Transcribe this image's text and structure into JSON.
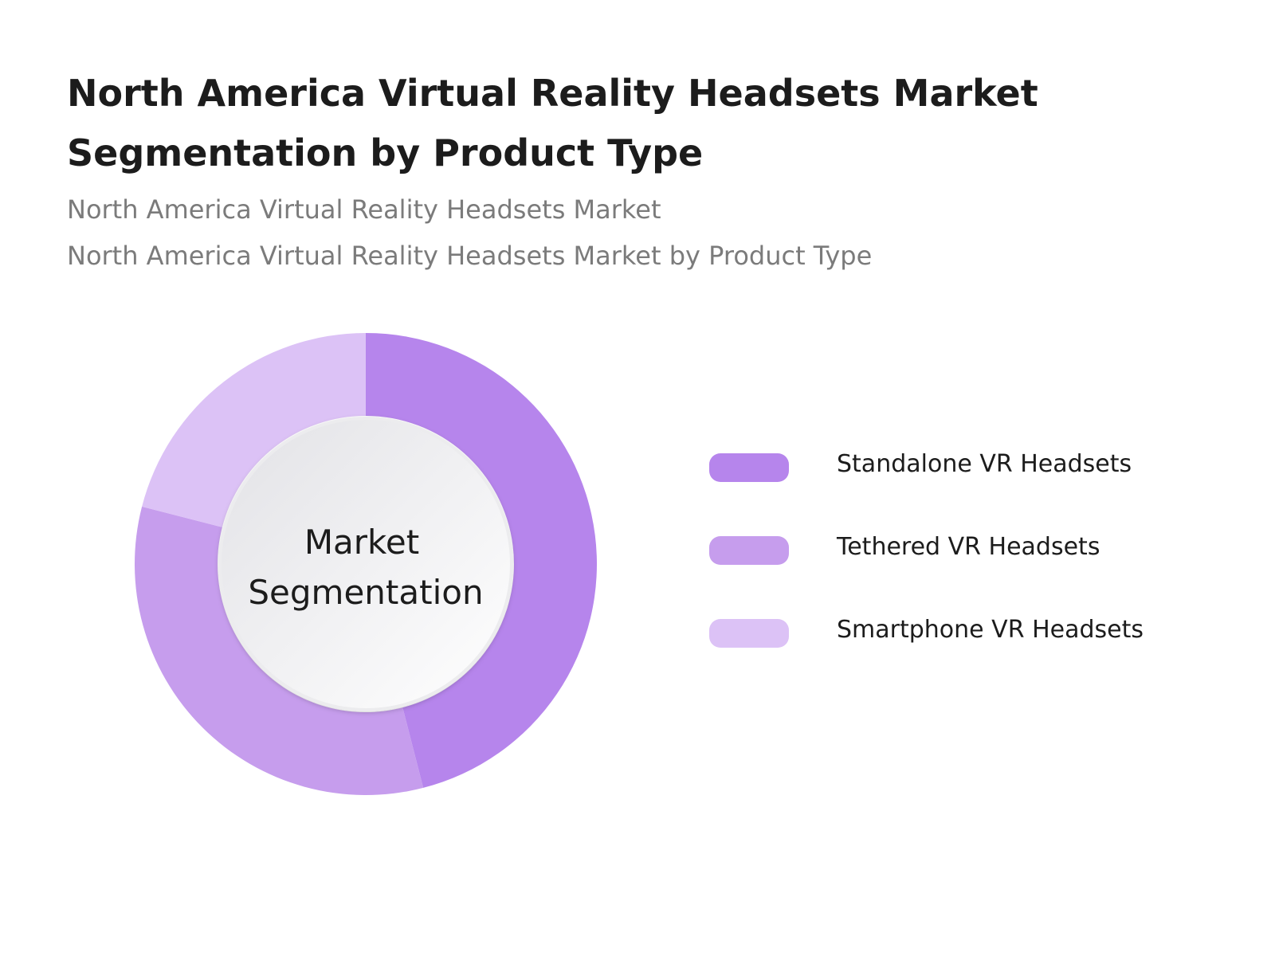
{
  "header": {
    "title": "North America Virtual Reality Headsets Market Segmentation by Product Type",
    "subtitle_line1": "North America Virtual Reality Headsets Market",
    "subtitle_line2": "North America Virtual Reality Headsets Market by Product Type"
  },
  "chart_data": {
    "type": "pie",
    "style": "donut",
    "title": "North America Virtual Reality Headsets Market Segmentation by Product Type",
    "center_label_lines": [
      "Market",
      "Segmentation"
    ],
    "categories": [
      "Standalone VR Headsets",
      "Tethered VR Headsets",
      "Smartphone VR Headsets"
    ],
    "values": [
      46,
      33,
      21
    ],
    "colors": [
      "#b685ec",
      "#c69ded",
      "#dcc2f6"
    ],
    "legend_placement": "right"
  }
}
